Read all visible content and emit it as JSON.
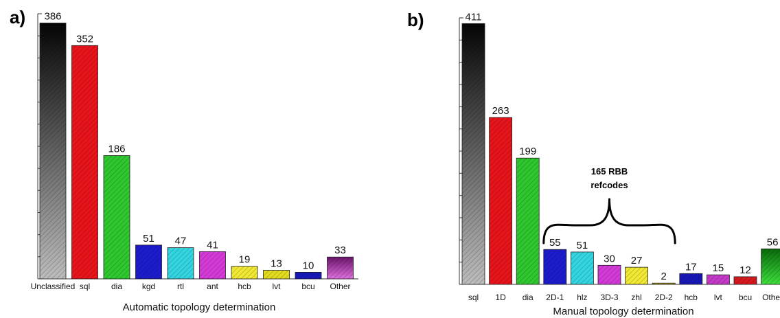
{
  "chart_data": [
    {
      "type": "bar",
      "panel_label": "a)",
      "xlabel": "Automatic topology determination",
      "ylabel": "",
      "ylim": [
        0,
        400
      ],
      "grid": false,
      "categories": [
        "Unclassified",
        "sql",
        "dia",
        "kgd",
        "rtl",
        "ant",
        "hcb",
        "lvt",
        "bcu",
        "Other"
      ],
      "values": [
        386,
        352,
        186,
        51,
        47,
        41,
        19,
        13,
        10,
        33
      ],
      "colors": [
        "#4a4a4a",
        "#e8141b",
        "#2ec82e",
        "#1c1ccc",
        "#33d6e0",
        "#d43ad8",
        "#f0e832",
        "#e2dc1e",
        "#1818b8",
        "#b0309e"
      ],
      "gradient": [
        true,
        false,
        false,
        false,
        false,
        false,
        false,
        false,
        false,
        true
      ]
    },
    {
      "type": "bar",
      "panel_label": "b)",
      "xlabel": "Manual topology determination",
      "ylabel": "",
      "ylim": [
        0,
        420
      ],
      "grid": false,
      "categories": [
        "sql",
        "1D",
        "dia",
        "2D-1",
        "hlz",
        "3D-3",
        "zhl",
        "2D-2",
        "hcb",
        "lvt",
        "bcu",
        "Other"
      ],
      "values": [
        411,
        263,
        199,
        55,
        51,
        30,
        27,
        2,
        17,
        15,
        12,
        56
      ],
      "colors": [
        "#4a4a4a",
        "#e8141b",
        "#2ec82e",
        "#1c1ccc",
        "#33d6e0",
        "#d43ad8",
        "#f0e832",
        "#b8b014",
        "#1818b8",
        "#c53ac9",
        "#d8181f",
        "#1fa81f"
      ],
      "gradient": [
        true,
        false,
        false,
        false,
        false,
        false,
        false,
        false,
        false,
        false,
        false,
        true
      ],
      "annotation": {
        "lines": [
          "165 RBB",
          "refcodes"
        ],
        "from_category": "2D-1",
        "to_category": "2D-2"
      }
    }
  ]
}
